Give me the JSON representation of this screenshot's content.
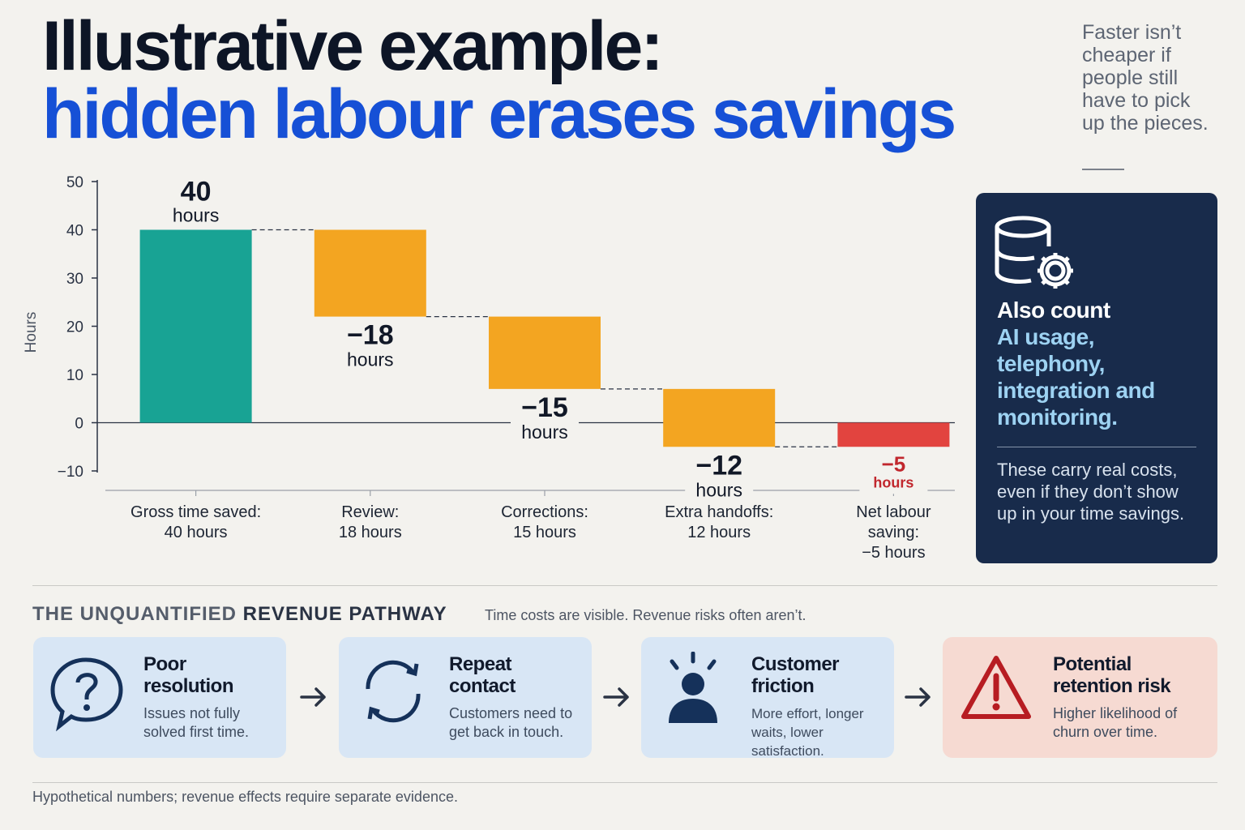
{
  "header": {
    "title_line1": "Illustrative example:",
    "title_line2": "hidden labour erases savings",
    "aside": "Faster isn’t cheaper if people still have to pick up the pieces."
  },
  "chart_data": {
    "type": "waterfall",
    "ylabel": "Hours",
    "categories": [
      "Gross time saved:\n40 hours",
      "Review:\n18 hours",
      "Corrections:\n15 hours",
      "Extra handoffs:\n12 hours",
      "Net labour\nsaving:\n−5 hours"
    ],
    "measures": [
      "absolute",
      "relative",
      "relative",
      "relative",
      "total"
    ],
    "values": [
      40,
      -18,
      -15,
      -12,
      -5
    ],
    "value_labels": [
      "40",
      "−18",
      "−15",
      "−12",
      "−5"
    ],
    "value_unit": "hours",
    "colors": [
      "#18a394",
      "#f3a521",
      "#f3a521",
      "#f3a521",
      "#e2443f"
    ],
    "ylim": [
      -10,
      50
    ],
    "yticks": [
      {
        "value": -10,
        "label": "−10"
      },
      0,
      10,
      20,
      30,
      40,
      50
    ]
  },
  "panel": {
    "heading": "Also count",
    "highlight": "AI usage, telephony, integration and monitoring.",
    "note": "These carry real costs, even if they don’t show up in your time savings."
  },
  "pathway": {
    "heading": [
      "THE UNQUANTIFIED",
      "REVENUE PATHWAY"
    ],
    "subtitle": "Time costs are visible. Revenue risks often aren’t.",
    "steps": [
      {
        "title": "Poor resolution",
        "text": "Issues not fully solved first time."
      },
      {
        "title": "Repeat contact",
        "text": "Customers need to get back in touch."
      },
      {
        "title": "Customer friction",
        "text": "More effort, longer waits, lower satisfaction."
      },
      {
        "title": "Potential retention risk",
        "text": "Higher likelihood of churn over time."
      }
    ]
  },
  "footer": "Hypothetical numbers; revenue effects require separate evidence."
}
